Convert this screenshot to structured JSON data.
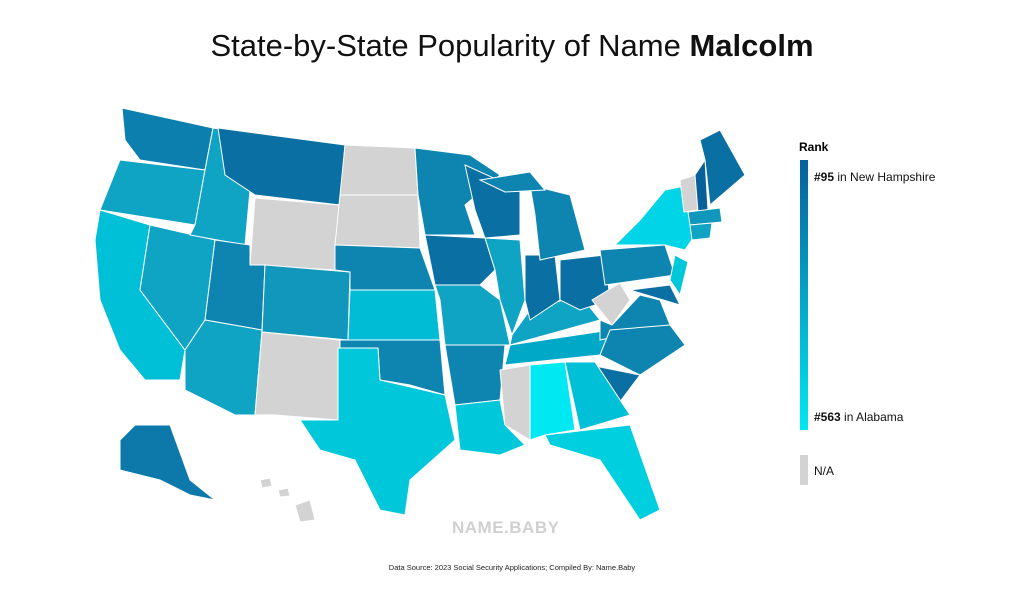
{
  "header": {
    "title_prefix": "State-by-State Popularity of Name",
    "title_name": "Malcolm"
  },
  "legend": {
    "title": "Rank",
    "top": {
      "rank": "#95",
      "state": "in New Hampshire"
    },
    "bottom": {
      "rank": "#563",
      "state": "in Alabama"
    },
    "na": "N/A"
  },
  "watermark": "NAME.BABY",
  "footer": "Data Source: 2023 Social Security Applications; Compiled By: Name.Baby"
}
